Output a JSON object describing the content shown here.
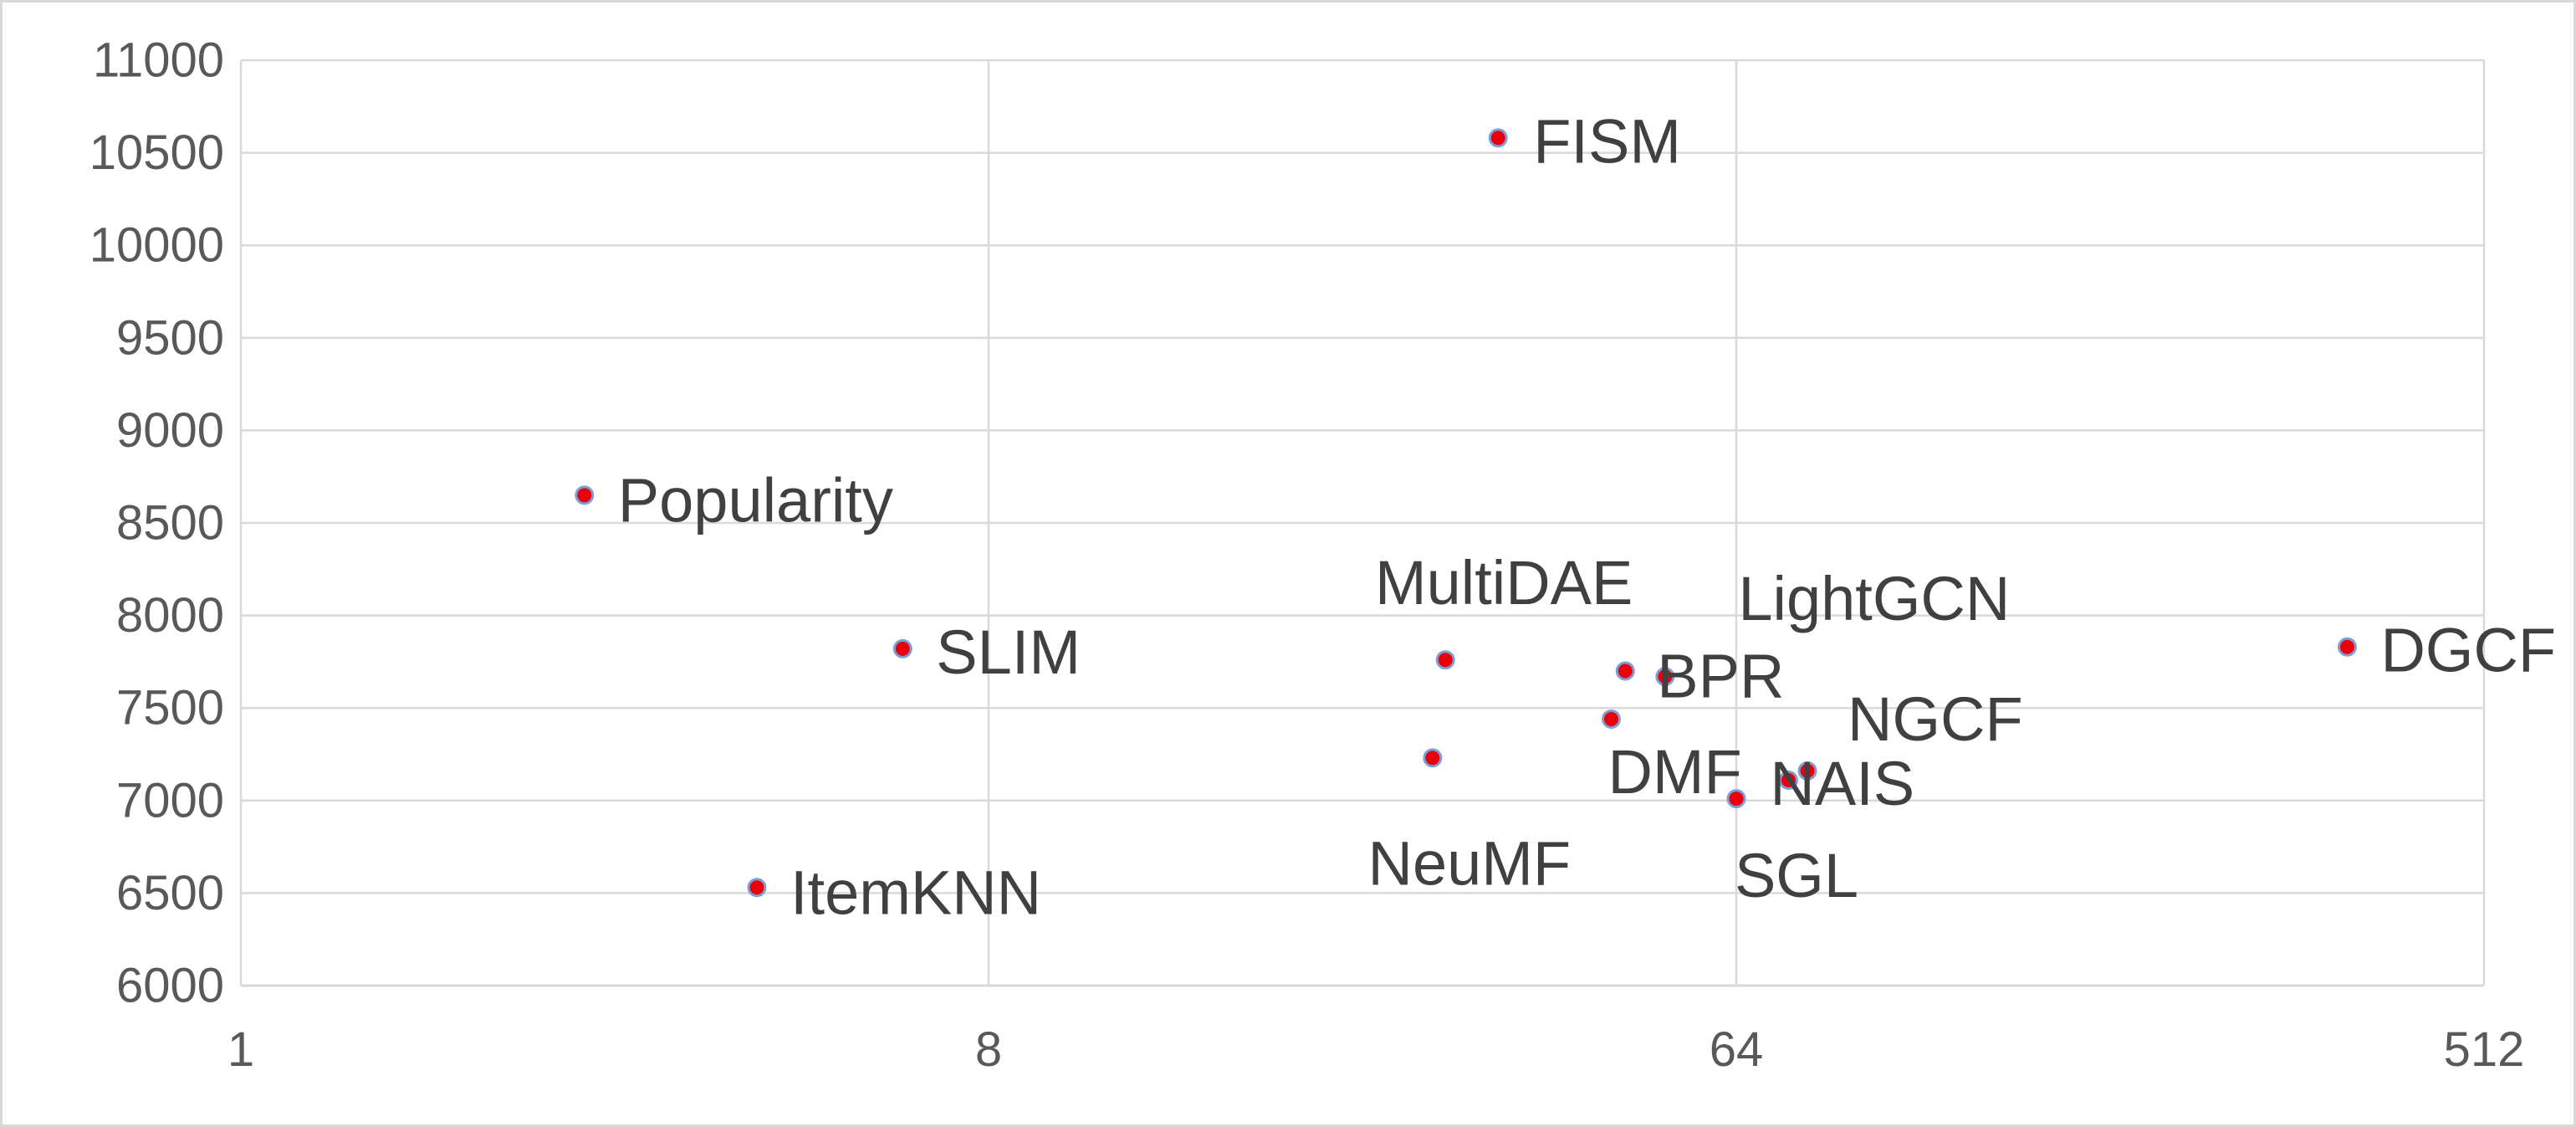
{
  "chart_data": {
    "type": "scatter",
    "title": "",
    "xlabel": "",
    "ylabel": "",
    "x_scale": "log2",
    "xlim": [
      1,
      512
    ],
    "ylim": [
      6000,
      11000
    ],
    "x_ticks": [
      "1",
      "8",
      "64",
      "512"
    ],
    "y_ticks": [
      "6000",
      "6500",
      "7000",
      "7500",
      "8000",
      "8500",
      "9000",
      "9500",
      "10000",
      "10500",
      "11000"
    ],
    "grid": true,
    "legend": "none",
    "marker_fill": "#e8000b",
    "marker_edge": "#7f9fd4",
    "gridline_color": "#d9d9d9",
    "axis_text_color": "#595959",
    "label_color": "#404040",
    "points": [
      {
        "name": "FISM",
        "x": 33,
        "y": 10580
      },
      {
        "name": "Popularity",
        "x": 2.6,
        "y": 8650
      },
      {
        "name": "SLIM",
        "x": 6.3,
        "y": 7820
      },
      {
        "name": "ItemKNN",
        "x": 4.2,
        "y": 6530
      },
      {
        "name": "MultiDAE",
        "x": 28.5,
        "y": 7760
      },
      {
        "name": "NeuMF",
        "x": 27.5,
        "y": 7230
      },
      {
        "name": "BPR",
        "x": 47,
        "y": 7700
      },
      {
        "name": "LightGCN",
        "x": 52.5,
        "y": 7670
      },
      {
        "name": "DMF",
        "x": 45.2,
        "y": 7440
      },
      {
        "name": "SGL",
        "x": 64,
        "y": 7010
      },
      {
        "name": "NAIS",
        "x": 74,
        "y": 7110
      },
      {
        "name": "NGCF",
        "x": 78,
        "y": 7160
      },
      {
        "name": "DGCF",
        "x": 350,
        "y": 7830
      }
    ]
  }
}
